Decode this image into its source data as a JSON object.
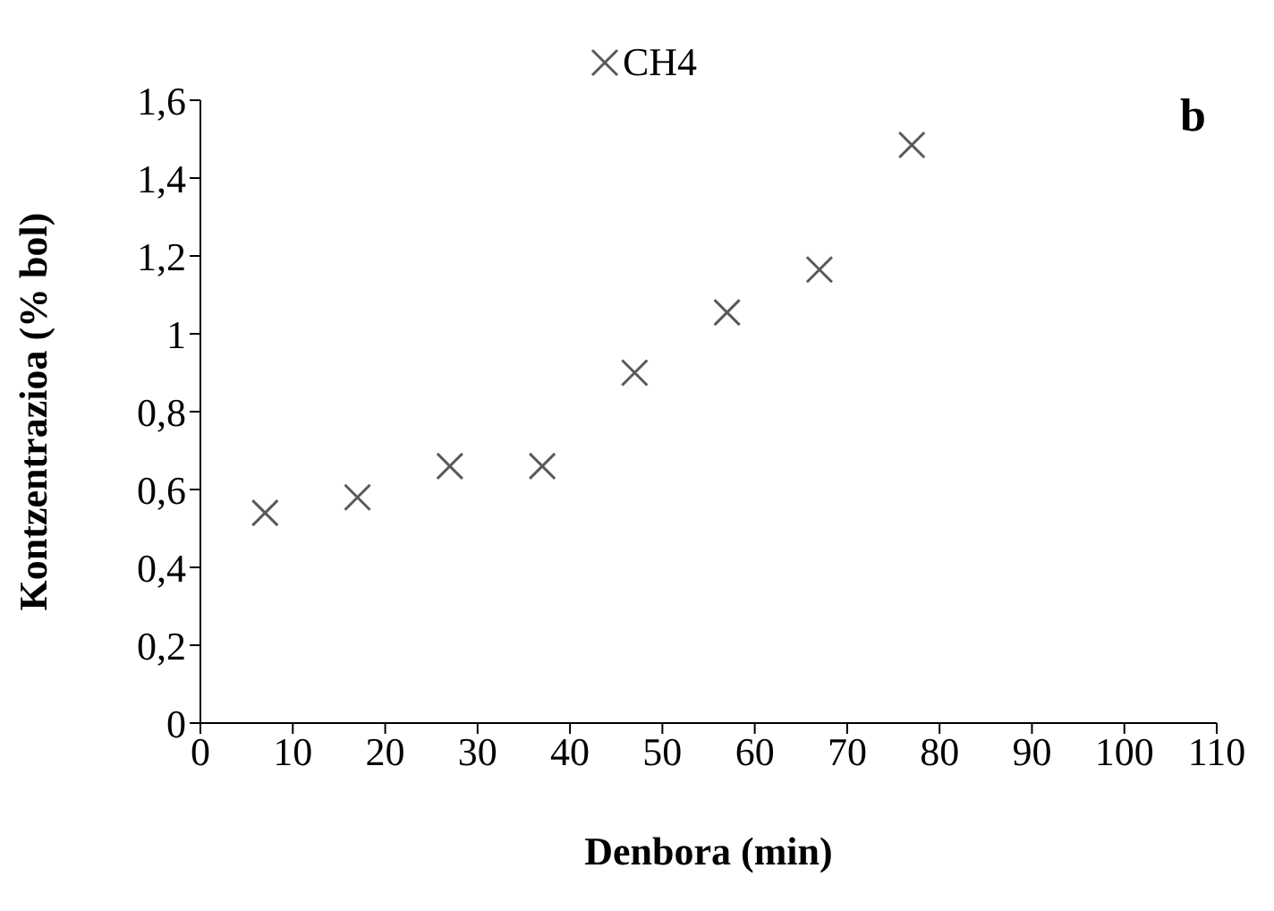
{
  "chart_data": {
    "type": "scatter",
    "xlabel": "Denbora (min)",
    "ylabel": "Kontzentrazioa (% bol)",
    "annotations": [
      "b"
    ],
    "x": [
      7,
      17,
      27,
      37,
      47,
      57,
      67,
      77
    ],
    "series": [
      {
        "name": "CH4",
        "color": "#595959",
        "values": [
          0.54,
          0.58,
          0.66,
          0.66,
          0.9,
          1.055,
          1.165,
          1.485
        ]
      }
    ],
    "xlim": [
      0,
      110
    ],
    "xticks": [
      0,
      10,
      20,
      30,
      40,
      50,
      60,
      70,
      80,
      90,
      100,
      110
    ],
    "ylim": [
      0,
      1.6
    ],
    "yticks": [
      0,
      {
        "value": 0.2,
        "label": "0,2"
      },
      {
        "value": 0.4,
        "label": "0,4"
      },
      {
        "value": 0.6,
        "label": "0,6"
      },
      {
        "value": 0.8,
        "label": "0,8"
      },
      1,
      {
        "value": 1.2,
        "label": "1,2"
      },
      {
        "value": 1.4,
        "label": "1,4"
      },
      {
        "value": 1.6,
        "label": "1,6"
      }
    ],
    "grid": false,
    "legend": "top",
    "marker": "cross"
  }
}
